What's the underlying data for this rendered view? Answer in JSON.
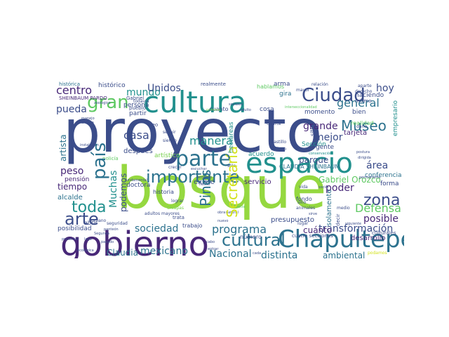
{
  "palette": {
    "navy": "#3b4d8a",
    "dark_purple": "#482878",
    "deep": "#440154",
    "teal": "#21908d",
    "blue_teal": "#2c728e",
    "green": "#5ec962",
    "lime": "#95d840",
    "yellow": "#d2e21b",
    "light_green": "#7ad151"
  },
  "words": {
    "proyecto": "proyecto",
    "bosque": "bosque",
    "gobierno": "gobierno",
    "cultura": "cultura",
    "espacio": "espacio",
    "chapultepec": "Chapultepec",
    "ciudad": "Ciudad",
    "parte": "parte",
    "pais": "país",
    "gran": "gran",
    "importante": "importante",
    "cultural": "cultural",
    "arte": "arte",
    "toda": "toda",
    "secretaria": "Secretaría",
    "museo": "Museo",
    "zona": "zona",
    "programa": "programa",
    "general": "general",
    "pinos": "Pinos",
    "centro": "centro",
    "casa": "casa",
    "manera": "manera",
    "sociedad": "sociedad",
    "defensa": "Defensa",
    "transformacion": "transformación",
    "nacional": "Nacional",
    "mexicano": "mexicano",
    "distinta": "distinta",
    "mundo": "mundo",
    "unidos": "Unidos",
    "muchas": "Muchas",
    "podemos": "podemos",
    "peso": "peso",
    "pueda": "pueda",
    "grande": "grande",
    "mejor": "mejor",
    "area": "área",
    "poder": "poder",
    "parque": "parque",
    "hoy": "hoy",
    "posible": "posible",
    "ambiental": "ambiental",
    "cuanto": "cuánto",
    "tiempo": "tiempo",
    "claudia": "Claudia",
    "gabriel_orozco": "Gabriel Orozco",
    "presupuesto": "presupuesto",
    "servicio": "servicio",
    "existe": "existe",
    "solamente": "solamente",
    "artista": "artista",
    "despues": "después",
    "alcalde": "alcalde",
    "pension": "pensión",
    "desarrollo": "desarrollo",
    "historico": "histórico",
    "historica": "histórica",
    "gira": "gira",
    "arma": "arma",
    "hablamos": "hablamos",
    "haciendo": "haciendo",
    "empresario": "empresario",
    "conferencia": "conferencia",
    "forma": "forma",
    "claudia_sheinbaum": "CLAUDIA SHEINBAUM",
    "sheinbaum_pardo": "SHEINBAUM PARDO",
    "seccion": "Sección",
    "acuerdo": "acuerdo",
    "hectareas": "hectáreas",
    "tarjeta": "tarjeta",
    "gente": "gente",
    "momento": "momento",
    "realidad": "realidad",
    "persona": "persona",
    "partir": "partir",
    "doctora": "doctora",
    "historia": "historia",
    "artistico": "artístico",
    "posibilidad": "posibilidad",
    "realmente": "realmente",
    "cosa": "cosa",
    "cuanto2": "cuanto",
    "bien": "bien",
    "trabajo": "trabajo",
    "numero": "número",
    "fondo": "fondo",
    "cuatro_secciones": "cuatro secciones",
    "culturales": "culturales",
    "abrir": "abrir",
    "pueblo": "pueblo",
    "todavia": "todavía",
    "creo": "creo",
    "siendo": "siendo",
    "seguir": "seguir",
    "trata": "trata",
    "lograr": "lograr",
    "chiapas": "Chiapas",
    "sitio": "sitio",
    "sino": "sino",
    "vida": "vida",
    "lugar": "lugar",
    "medio": "medio",
    "animales": "animales",
    "dialogo": "diálogo",
    "castillo": "Castillo",
    "cuarta": "Cuarta",
    "decir": "decir",
    "gabriel": "Gabriel",
    "mismo": "mismo",
    "mayor": "mayor",
    "derecho": "derecho",
    "aparte": "aparte",
    "relacion": "relación",
    "policia": "policía",
    "urbano": "urbano",
    "seguridad": "seguridad",
    "podamos": "podamos",
    "segunda": "Segunda",
    "presentar": "presentar",
    "panteon": "panteón",
    "ecologica": "ecológica",
    "manejo": "manejo",
    "ahorita": "ahorita",
    "zoologico": "zoológico",
    "instalacion": "instalación",
    "postura": "postura",
    "siguiente": "siguiente",
    "territorio": "territorio",
    "conservacion": "conservación",
    "interseccion": "interseccionalidad",
    "sociales": "sociales",
    "fuerza": "fuerza",
    "natural": "natural",
    "obra": "obra",
    "permanente": "permanente",
    "dirigida": "dirigida",
    "crecer": "crecer",
    "escuchar": "escuchar",
    "fundamental": "fundamental",
    "adultos_mayores": "adultos mayores",
    "primera": "primera",
    "adulto": "adulto",
    "hecho": "hecho",
    "solo": "sólo",
    "cabo": "cabo",
    "entrar": "entrar",
    "cada": "cada",
    "nuevo": "nuevo",
    "lago": "lago",
    "pasado": "pasado",
    "darle": "darle",
    "social": "social",
    "sirve": "sirve"
  }
}
